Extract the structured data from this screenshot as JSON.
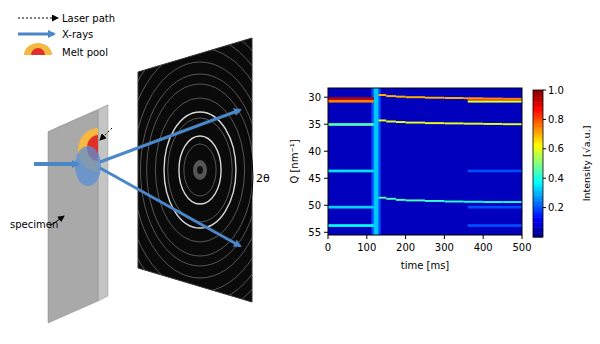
{
  "diagram": {
    "legend": [
      {
        "label": "Laser path"
      },
      {
        "label": "X-rays"
      },
      {
        "label": "Melt pool"
      }
    ],
    "specimen_label": "specimen",
    "angle_label": "2θ"
  },
  "chart_data": {
    "type": "heatmap",
    "xlabel": "time [ms]",
    "ylabel": "Q [nm⁻¹]",
    "xlim": [
      0,
      500
    ],
    "xticks": [
      0,
      100,
      200,
      300,
      400,
      500
    ],
    "ylim": [
      55.5,
      28.3
    ],
    "yticks": [
      30,
      35,
      40,
      45,
      50,
      55
    ],
    "colorbar_label": "Intensity [√a.u.]",
    "colorbar_range": [
      0,
      1
    ],
    "colorbar_ticks": [
      0.2,
      0.4,
      0.6,
      0.8,
      {
        "value": 1,
        "label": "1.0"
      }
    ],
    "cells": [
      {
        "x": [
          0,
          500
        ],
        "y": [
          28.3,
          55.5
        ],
        "value": 0.06
      },
      {
        "x": [
          112,
          136
        ],
        "y": [
          28.3,
          55.5
        ],
        "value": 0.2
      },
      {
        "x": [
          118,
          130
        ],
        "y": [
          28.3,
          55.5
        ],
        "value": 0.32
      },
      {
        "x": [
          0,
          118
        ],
        "y": [
          30.0,
          30.5
        ],
        "value": 0.95
      },
      {
        "x": [
          0,
          118
        ],
        "y": [
          30.5,
          31.0
        ],
        "value": 0.75
      },
      {
        "x": [
          0,
          118
        ],
        "y": [
          34.8,
          35.3
        ],
        "value": 0.45
      },
      {
        "x": [
          0,
          118
        ],
        "y": [
          43.4,
          43.9
        ],
        "value": 0.35
      },
      {
        "x": [
          0,
          118
        ],
        "y": [
          50.1,
          50.6
        ],
        "value": 0.33
      },
      {
        "x": [
          0,
          118
        ],
        "y": [
          53.5,
          54.0
        ],
        "value": 0.38
      },
      {
        "x": [
          360,
          500
        ],
        "y": [
          30.2,
          30.6
        ],
        "value": 0.85
      },
      {
        "x": [
          360,
          500
        ],
        "y": [
          30.6,
          31.0
        ],
        "value": 0.6
      },
      {
        "x": [
          360,
          500
        ],
        "y": [
          43.4,
          43.9
        ],
        "value": 0.2
      },
      {
        "x": [
          360,
          500
        ],
        "y": [
          50.1,
          50.6
        ],
        "value": 0.2
      },
      {
        "x": [
          360,
          500
        ],
        "y": [
          53.5,
          54.0
        ],
        "value": 0.2
      },
      {
        "x": [
          130,
          150
        ],
        "y": [
          29.42,
          29.78
        ],
        "value": 0.7
      },
      {
        "x": [
          150,
          175
        ],
        "y": [
          29.62,
          29.98
        ],
        "value": 0.7
      },
      {
        "x": [
          175,
          200
        ],
        "y": [
          29.72,
          30.08
        ],
        "value": 0.7
      },
      {
        "x": [
          200,
          250
        ],
        "y": [
          29.82,
          30.18
        ],
        "value": 0.7
      },
      {
        "x": [
          250,
          300
        ],
        "y": [
          29.92,
          30.28
        ],
        "value": 0.7
      },
      {
        "x": [
          300,
          350
        ],
        "y": [
          29.97,
          30.33
        ],
        "value": 0.7
      },
      {
        "x": [
          350,
          400
        ],
        "y": [
          30.02,
          30.38
        ],
        "value": 0.72
      },
      {
        "x": [
          400,
          450
        ],
        "y": [
          30.07,
          30.43
        ],
        "value": 0.74
      },
      {
        "x": [
          450,
          500
        ],
        "y": [
          30.12,
          30.48
        ],
        "value": 0.75
      },
      {
        "x": [
          130,
          150
        ],
        "y": [
          34.12,
          34.48
        ],
        "value": 0.6
      },
      {
        "x": [
          150,
          175
        ],
        "y": [
          34.32,
          34.68
        ],
        "value": 0.6
      },
      {
        "x": [
          175,
          200
        ],
        "y": [
          34.42,
          34.78
        ],
        "value": 0.6
      },
      {
        "x": [
          200,
          250
        ],
        "y": [
          34.52,
          34.88
        ],
        "value": 0.6
      },
      {
        "x": [
          250,
          300
        ],
        "y": [
          34.62,
          34.98
        ],
        "value": 0.6
      },
      {
        "x": [
          300,
          350
        ],
        "y": [
          34.67,
          35.03
        ],
        "value": 0.6
      },
      {
        "x": [
          350,
          400
        ],
        "y": [
          34.72,
          35.08
        ],
        "value": 0.6
      },
      {
        "x": [
          400,
          450
        ],
        "y": [
          34.77,
          35.13
        ],
        "value": 0.6
      },
      {
        "x": [
          450,
          500
        ],
        "y": [
          34.82,
          35.18
        ],
        "value": 0.6
      },
      {
        "x": [
          130,
          150
        ],
        "y": [
          48.42,
          48.78
        ],
        "value": 0.45
      },
      {
        "x": [
          150,
          175
        ],
        "y": [
          48.62,
          48.98
        ],
        "value": 0.45
      },
      {
        "x": [
          175,
          200
        ],
        "y": [
          48.82,
          49.18
        ],
        "value": 0.45
      },
      {
        "x": [
          200,
          250
        ],
        "y": [
          48.92,
          49.28
        ],
        "value": 0.45
      },
      {
        "x": [
          250,
          300
        ],
        "y": [
          49.02,
          49.38
        ],
        "value": 0.43
      },
      {
        "x": [
          300,
          350
        ],
        "y": [
          49.12,
          49.48
        ],
        "value": 0.42
      },
      {
        "x": [
          350,
          400
        ],
        "y": [
          49.17,
          49.53
        ],
        "value": 0.4
      },
      {
        "x": [
          400,
          450
        ],
        "y": [
          49.22,
          49.58
        ],
        "value": 0.4
      },
      {
        "x": [
          450,
          500
        ],
        "y": [
          49.22,
          49.58
        ],
        "value": 0.4
      }
    ]
  }
}
